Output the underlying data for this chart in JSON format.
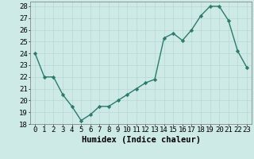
{
  "x": [
    0,
    1,
    2,
    3,
    4,
    5,
    6,
    7,
    8,
    9,
    10,
    11,
    12,
    13,
    14,
    15,
    16,
    17,
    18,
    19,
    20,
    21,
    22,
    23
  ],
  "y": [
    24.0,
    22.0,
    22.0,
    20.5,
    19.5,
    18.3,
    18.8,
    19.5,
    19.5,
    20.0,
    20.5,
    21.0,
    21.5,
    21.8,
    25.3,
    25.7,
    25.1,
    26.0,
    27.2,
    28.0,
    28.0,
    26.8,
    24.2,
    22.8
  ],
  "line_color": "#2d7a6e",
  "marker": "D",
  "marker_size": 2.2,
  "linewidth": 1.0,
  "xlabel": "Humidex (Indice chaleur)",
  "xlabel_fontsize": 7.5,
  "ylim": [
    18,
    28.4
  ],
  "xlim": [
    -0.5,
    23.5
  ],
  "yticks": [
    18,
    19,
    20,
    21,
    22,
    23,
    24,
    25,
    26,
    27,
    28
  ],
  "xticks": [
    0,
    1,
    2,
    3,
    4,
    5,
    6,
    7,
    8,
    9,
    10,
    11,
    12,
    13,
    14,
    15,
    16,
    17,
    18,
    19,
    20,
    21,
    22,
    23
  ],
  "xtick_labels": [
    "0",
    "1",
    "2",
    "3",
    "4",
    "5",
    "6",
    "7",
    "8",
    "9",
    "10",
    "11",
    "12",
    "13",
    "14",
    "15",
    "16",
    "17",
    "18",
    "19",
    "20",
    "21",
    "22",
    "23"
  ],
  "background_color": "#cdeae6",
  "grid_color": "#b8d8d4",
  "tick_fontsize": 6.5,
  "fig_width": 3.2,
  "fig_height": 2.0,
  "dpi": 100
}
